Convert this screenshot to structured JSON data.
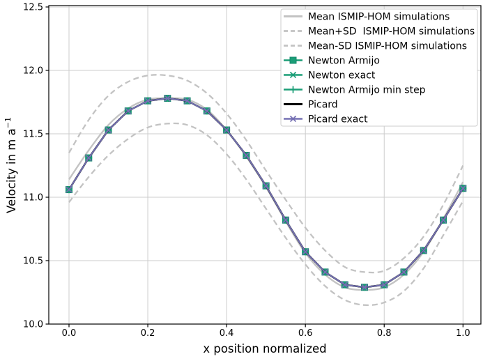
{
  "chart_data": {
    "type": "line",
    "title": "",
    "xlabel": "x position normalized",
    "ylabel": "Velocity in m a⁻¹",
    "ylabel_base": "Velocity in m a",
    "ylabel_sup": "−1",
    "xlim": [
      -0.05,
      1.05
    ],
    "ylim": [
      10.0,
      12.5
    ],
    "xticks": [
      0.0,
      0.2,
      0.4,
      0.6,
      0.8,
      1.0
    ],
    "yticks": [
      10.0,
      10.5,
      11.0,
      11.5,
      12.0,
      12.5
    ],
    "grid": true,
    "grid_color": "#cccccc",
    "axis_color": "#000000",
    "legend_position": "upper right",
    "x": [
      0.0,
      0.05,
      0.1,
      0.15,
      0.2,
      0.25,
      0.3,
      0.35,
      0.4,
      0.45,
      0.5,
      0.55,
      0.6,
      0.65,
      0.7,
      0.75,
      0.8,
      0.85,
      0.9,
      0.95,
      1.0
    ],
    "series": [
      {
        "name": "Mean ISMIP-HOM simulations",
        "color": "#c3c3c3",
        "style": "solid",
        "marker": "none",
        "width": 2.4,
        "smooth": true,
        "values": [
          11.14,
          11.37,
          11.57,
          11.7,
          11.77,
          11.78,
          11.77,
          11.69,
          11.53,
          11.32,
          11.08,
          10.81,
          10.56,
          10.39,
          10.29,
          10.27,
          10.29,
          10.39,
          10.57,
          10.83,
          11.12
        ]
      },
      {
        "name": "Mean+SD  ISMIP-HOM simulations",
        "color": "#c3c3c3",
        "style": "dashed",
        "marker": "none",
        "width": 2.3,
        "smooth": true,
        "values": [
          11.35,
          11.61,
          11.8,
          11.91,
          11.96,
          11.96,
          11.92,
          11.82,
          11.66,
          11.45,
          11.21,
          10.98,
          10.76,
          10.58,
          10.45,
          10.41,
          10.42,
          10.52,
          10.69,
          10.94,
          11.25
        ]
      },
      {
        "name": "Mean-SD ISMIP-HOM simulations",
        "color": "#c3c3c3",
        "style": "dashed",
        "marker": "none",
        "width": 2.3,
        "smooth": true,
        "values": [
          10.96,
          11.16,
          11.33,
          11.46,
          11.55,
          11.58,
          11.57,
          11.49,
          11.34,
          11.14,
          10.91,
          10.68,
          10.47,
          10.3,
          10.19,
          10.15,
          10.17,
          10.26,
          10.44,
          10.7,
          10.97
        ]
      },
      {
        "name": "Newton Armijo",
        "color": "#1b9e77",
        "style": "solid",
        "marker": "square",
        "width": 2.0,
        "smooth": false,
        "values": [
          11.06,
          11.31,
          11.53,
          11.68,
          11.76,
          11.78,
          11.76,
          11.68,
          11.53,
          11.33,
          11.09,
          10.82,
          10.57,
          10.41,
          10.31,
          10.29,
          10.31,
          10.41,
          10.58,
          10.82,
          11.07
        ]
      },
      {
        "name": "Newton exact",
        "color": "#1b9e77",
        "style": "solid",
        "marker": "x",
        "width": 2.0,
        "smooth": false,
        "values": [
          11.06,
          11.31,
          11.53,
          11.68,
          11.76,
          11.78,
          11.76,
          11.68,
          11.53,
          11.33,
          11.09,
          10.82,
          10.57,
          10.41,
          10.31,
          10.29,
          10.31,
          10.41,
          10.58,
          10.82,
          11.07
        ]
      },
      {
        "name": "Newton Armijo min step",
        "color": "#1b9e77",
        "style": "solid",
        "marker": "plus",
        "width": 2.0,
        "smooth": false,
        "values": [
          11.06,
          11.31,
          11.53,
          11.68,
          11.76,
          11.78,
          11.76,
          11.68,
          11.53,
          11.33,
          11.09,
          10.82,
          10.57,
          10.41,
          10.31,
          10.29,
          10.31,
          10.41,
          10.58,
          10.82,
          11.07
        ]
      },
      {
        "name": "Picard",
        "color": "#000000",
        "style": "solid",
        "marker": "none",
        "width": 2.5,
        "smooth": false,
        "values": [
          11.06,
          11.31,
          11.53,
          11.68,
          11.76,
          11.78,
          11.76,
          11.68,
          11.53,
          11.33,
          11.09,
          10.82,
          10.57,
          10.41,
          10.31,
          10.29,
          10.31,
          10.41,
          10.58,
          10.82,
          11.07
        ]
      },
      {
        "name": "Picard exact",
        "color": "#7570b3",
        "style": "solid",
        "marker": "x",
        "width": 2.0,
        "smooth": false,
        "values": [
          11.06,
          11.31,
          11.53,
          11.68,
          11.76,
          11.78,
          11.76,
          11.68,
          11.53,
          11.33,
          11.09,
          10.82,
          10.57,
          10.41,
          10.31,
          10.29,
          10.31,
          10.41,
          10.58,
          10.82,
          11.07
        ]
      }
    ],
    "marker_edge_color": "#12876a"
  }
}
